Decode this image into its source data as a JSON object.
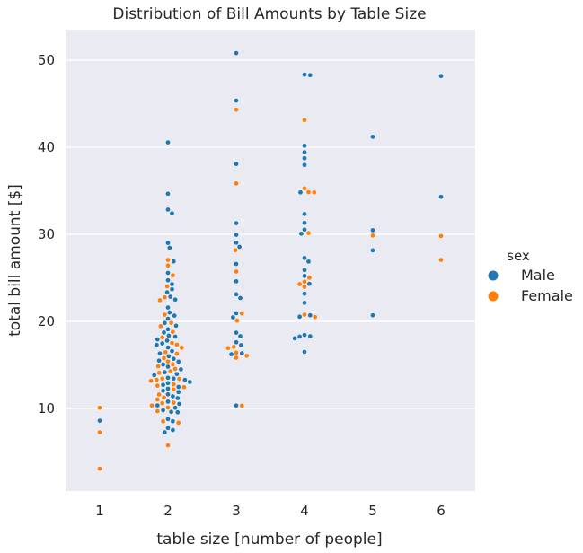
{
  "chart_data": {
    "type": "scatter",
    "subtype": "swarm",
    "title": "Distribution of Bill Amounts by Table Size",
    "xlabel": "table size [number of people]",
    "ylabel": "total bill amount [$]",
    "categories": [
      "1",
      "2",
      "3",
      "4",
      "5",
      "6"
    ],
    "y_ticks": [
      10,
      20,
      30,
      40,
      50
    ],
    "ylim": [
      0.5,
      53.5
    ],
    "grid": true,
    "legend": {
      "title": "sex",
      "position": "right",
      "entries": [
        "Male",
        "Female"
      ]
    },
    "colors": {
      "Male": "#1f77b4",
      "Female": "#ff7f0e",
      "background": "#eaeaf2",
      "grid": "#ffffff"
    },
    "series": [
      {
        "name": "Male",
        "points": [
          {
            "x": "1",
            "y": 8.58
          },
          {
            "x": "2",
            "y": 40.55
          },
          {
            "x": "2",
            "y": 34.65
          },
          {
            "x": "2",
            "y": 32.83
          },
          {
            "x": "2",
            "y": 32.4
          },
          {
            "x": "2",
            "y": 29.0
          },
          {
            "x": "2",
            "y": 28.44
          },
          {
            "x": "2",
            "y": 26.88
          },
          {
            "x": "2",
            "y": 25.56
          },
          {
            "x": "2",
            "y": 24.71
          },
          {
            "x": "2",
            "y": 24.27
          },
          {
            "x": "2",
            "y": 23.68
          },
          {
            "x": "2",
            "y": 23.33
          },
          {
            "x": "2",
            "y": 22.82
          },
          {
            "x": "2",
            "y": 22.49
          },
          {
            "x": "2",
            "y": 21.58
          },
          {
            "x": "2",
            "y": 21.01
          },
          {
            "x": "2",
            "y": 20.65
          },
          {
            "x": "2",
            "y": 20.29
          },
          {
            "x": "2",
            "y": 19.81
          },
          {
            "x": "2",
            "y": 19.49
          },
          {
            "x": "2",
            "y": 19.08
          },
          {
            "x": "2",
            "y": 18.71
          },
          {
            "x": "2",
            "y": 18.35
          },
          {
            "x": "2",
            "y": 18.24
          },
          {
            "x": "2",
            "y": 17.92
          },
          {
            "x": "2",
            "y": 17.78
          },
          {
            "x": "2",
            "y": 17.46
          },
          {
            "x": "2",
            "y": 17.29
          },
          {
            "x": "2",
            "y": 16.99
          },
          {
            "x": "2",
            "y": 16.58
          },
          {
            "x": "2",
            "y": 16.31
          },
          {
            "x": "2",
            "y": 15.98
          },
          {
            "x": "2",
            "y": 15.69
          },
          {
            "x": "2",
            "y": 15.48
          },
          {
            "x": "2",
            "y": 15.36
          },
          {
            "x": "2",
            "y": 15.04
          },
          {
            "x": "2",
            "y": 14.78
          },
          {
            "x": "2",
            "y": 14.48
          },
          {
            "x": "2",
            "y": 14.15
          },
          {
            "x": "2",
            "y": 13.94
          },
          {
            "x": "2",
            "y": 13.81
          },
          {
            "x": "2",
            "y": 13.51
          },
          {
            "x": "2",
            "y": 13.42
          },
          {
            "x": "2",
            "y": 13.27
          },
          {
            "x": "2",
            "y": 13.03
          },
          {
            "x": "2",
            "y": 12.9
          },
          {
            "x": "2",
            "y": 12.69
          },
          {
            "x": "2",
            "y": 12.46
          },
          {
            "x": "2",
            "y": 12.26
          },
          {
            "x": "2",
            "y": 12.03
          },
          {
            "x": "2",
            "y": 11.87
          },
          {
            "x": "2",
            "y": 11.61
          },
          {
            "x": "2",
            "y": 11.38
          },
          {
            "x": "2",
            "y": 11.17
          },
          {
            "x": "2",
            "y": 10.77
          },
          {
            "x": "2",
            "y": 10.51
          },
          {
            "x": "2",
            "y": 10.34
          },
          {
            "x": "2",
            "y": 10.07
          },
          {
            "x": "2",
            "y": 9.78
          },
          {
            "x": "2",
            "y": 9.6
          },
          {
            "x": "2",
            "y": 9.55
          },
          {
            "x": "2",
            "y": 8.77
          },
          {
            "x": "2",
            "y": 8.52
          },
          {
            "x": "2",
            "y": 7.74
          },
          {
            "x": "2",
            "y": 7.51
          },
          {
            "x": "2",
            "y": 7.25
          },
          {
            "x": "3",
            "y": 50.81
          },
          {
            "x": "3",
            "y": 45.35
          },
          {
            "x": "3",
            "y": 38.07
          },
          {
            "x": "3",
            "y": 31.27
          },
          {
            "x": "3",
            "y": 29.93
          },
          {
            "x": "3",
            "y": 29.03
          },
          {
            "x": "3",
            "y": 28.55
          },
          {
            "x": "3",
            "y": 26.59
          },
          {
            "x": "3",
            "y": 24.59
          },
          {
            "x": "3",
            "y": 23.1
          },
          {
            "x": "3",
            "y": 22.67
          },
          {
            "x": "3",
            "y": 20.92
          },
          {
            "x": "3",
            "y": 20.45
          },
          {
            "x": "3",
            "y": 18.69
          },
          {
            "x": "3",
            "y": 18.29
          },
          {
            "x": "3",
            "y": 17.59
          },
          {
            "x": "3",
            "y": 17.26
          },
          {
            "x": "3",
            "y": 16.32
          },
          {
            "x": "3",
            "y": 16.21
          },
          {
            "x": "3",
            "y": 10.33
          },
          {
            "x": "4",
            "y": 48.33
          },
          {
            "x": "4",
            "y": 48.27
          },
          {
            "x": "4",
            "y": 40.17
          },
          {
            "x": "4",
            "y": 39.42
          },
          {
            "x": "4",
            "y": 38.73
          },
          {
            "x": "4",
            "y": 37.96
          },
          {
            "x": "4",
            "y": 34.81
          },
          {
            "x": "4",
            "y": 32.32
          },
          {
            "x": "4",
            "y": 31.31
          },
          {
            "x": "4",
            "y": 30.53
          },
          {
            "x": "4",
            "y": 30.06
          },
          {
            "x": "4",
            "y": 27.28
          },
          {
            "x": "4",
            "y": 26.86
          },
          {
            "x": "4",
            "y": 25.89
          },
          {
            "x": "4",
            "y": 25.21
          },
          {
            "x": "4",
            "y": 24.3
          },
          {
            "x": "4",
            "y": 23.17
          },
          {
            "x": "4",
            "y": 22.12
          },
          {
            "x": "4",
            "y": 20.69
          },
          {
            "x": "4",
            "y": 20.53
          },
          {
            "x": "4",
            "y": 18.43
          },
          {
            "x": "4",
            "y": 18.28
          },
          {
            "x": "4",
            "y": 18.24
          },
          {
            "x": "4",
            "y": 18.04
          },
          {
            "x": "4",
            "y": 16.49
          },
          {
            "x": "5",
            "y": 41.19
          },
          {
            "x": "5",
            "y": 30.46
          },
          {
            "x": "5",
            "y": 28.15
          },
          {
            "x": "5",
            "y": 20.69
          },
          {
            "x": "6",
            "y": 48.17
          },
          {
            "x": "6",
            "y": 34.3
          }
        ]
      },
      {
        "name": "Female",
        "points": [
          {
            "x": "1",
            "y": 10.07
          },
          {
            "x": "1",
            "y": 7.25
          },
          {
            "x": "1",
            "y": 3.07
          },
          {
            "x": "2",
            "y": 27.05
          },
          {
            "x": "2",
            "y": 26.41
          },
          {
            "x": "2",
            "y": 25.28
          },
          {
            "x": "2",
            "y": 24.01
          },
          {
            "x": "2",
            "y": 22.75
          },
          {
            "x": "2",
            "y": 22.42
          },
          {
            "x": "2",
            "y": 20.76
          },
          {
            "x": "2",
            "y": 19.82
          },
          {
            "x": "2",
            "y": 19.44
          },
          {
            "x": "2",
            "y": 18.78
          },
          {
            "x": "2",
            "y": 18.15
          },
          {
            "x": "2",
            "y": 17.51
          },
          {
            "x": "2",
            "y": 17.31
          },
          {
            "x": "2",
            "y": 16.97
          },
          {
            "x": "2",
            "y": 16.45
          },
          {
            "x": "2",
            "y": 16.27
          },
          {
            "x": "2",
            "y": 15.77
          },
          {
            "x": "2",
            "y": 15.38
          },
          {
            "x": "2",
            "y": 15.06
          },
          {
            "x": "2",
            "y": 14.83
          },
          {
            "x": "2",
            "y": 14.52
          },
          {
            "x": "2",
            "y": 14.26
          },
          {
            "x": "2",
            "y": 14.07
          },
          {
            "x": "2",
            "y": 13.42
          },
          {
            "x": "2",
            "y": 13.39
          },
          {
            "x": "2",
            "y": 13.28
          },
          {
            "x": "2",
            "y": 13.16
          },
          {
            "x": "2",
            "y": 12.76
          },
          {
            "x": "2",
            "y": 12.6
          },
          {
            "x": "2",
            "y": 12.43
          },
          {
            "x": "2",
            "y": 12.16
          },
          {
            "x": "2",
            "y": 11.59
          },
          {
            "x": "2",
            "y": 11.24
          },
          {
            "x": "2",
            "y": 11.02
          },
          {
            "x": "2",
            "y": 10.65
          },
          {
            "x": "2",
            "y": 10.59
          },
          {
            "x": "2",
            "y": 10.33
          },
          {
            "x": "2",
            "y": 10.09
          },
          {
            "x": "2",
            "y": 9.68
          },
          {
            "x": "2",
            "y": 8.51
          },
          {
            "x": "2",
            "y": 8.35
          },
          {
            "x": "2",
            "y": 5.75
          },
          {
            "x": "3",
            "y": 44.3
          },
          {
            "x": "3",
            "y": 35.83
          },
          {
            "x": "3",
            "y": 28.17
          },
          {
            "x": "3",
            "y": 25.71
          },
          {
            "x": "3",
            "y": 20.9
          },
          {
            "x": "3",
            "y": 20.08
          },
          {
            "x": "3",
            "y": 17.07
          },
          {
            "x": "3",
            "y": 16.93
          },
          {
            "x": "3",
            "y": 16.4
          },
          {
            "x": "3",
            "y": 16.04
          },
          {
            "x": "3",
            "y": 15.81
          },
          {
            "x": "3",
            "y": 10.31
          },
          {
            "x": "4",
            "y": 43.11
          },
          {
            "x": "4",
            "y": 35.26
          },
          {
            "x": "4",
            "y": 34.83
          },
          {
            "x": "4",
            "y": 34.81
          },
          {
            "x": "4",
            "y": 30.14
          },
          {
            "x": "4",
            "y": 25.0
          },
          {
            "x": "4",
            "y": 24.55
          },
          {
            "x": "4",
            "y": 24.27
          },
          {
            "x": "4",
            "y": 23.95
          },
          {
            "x": "4",
            "y": 20.76
          },
          {
            "x": "4",
            "y": 20.49
          },
          {
            "x": "5",
            "y": 29.85
          },
          {
            "x": "6",
            "y": 29.8
          },
          {
            "x": "6",
            "y": 27.05
          }
        ]
      }
    ]
  }
}
